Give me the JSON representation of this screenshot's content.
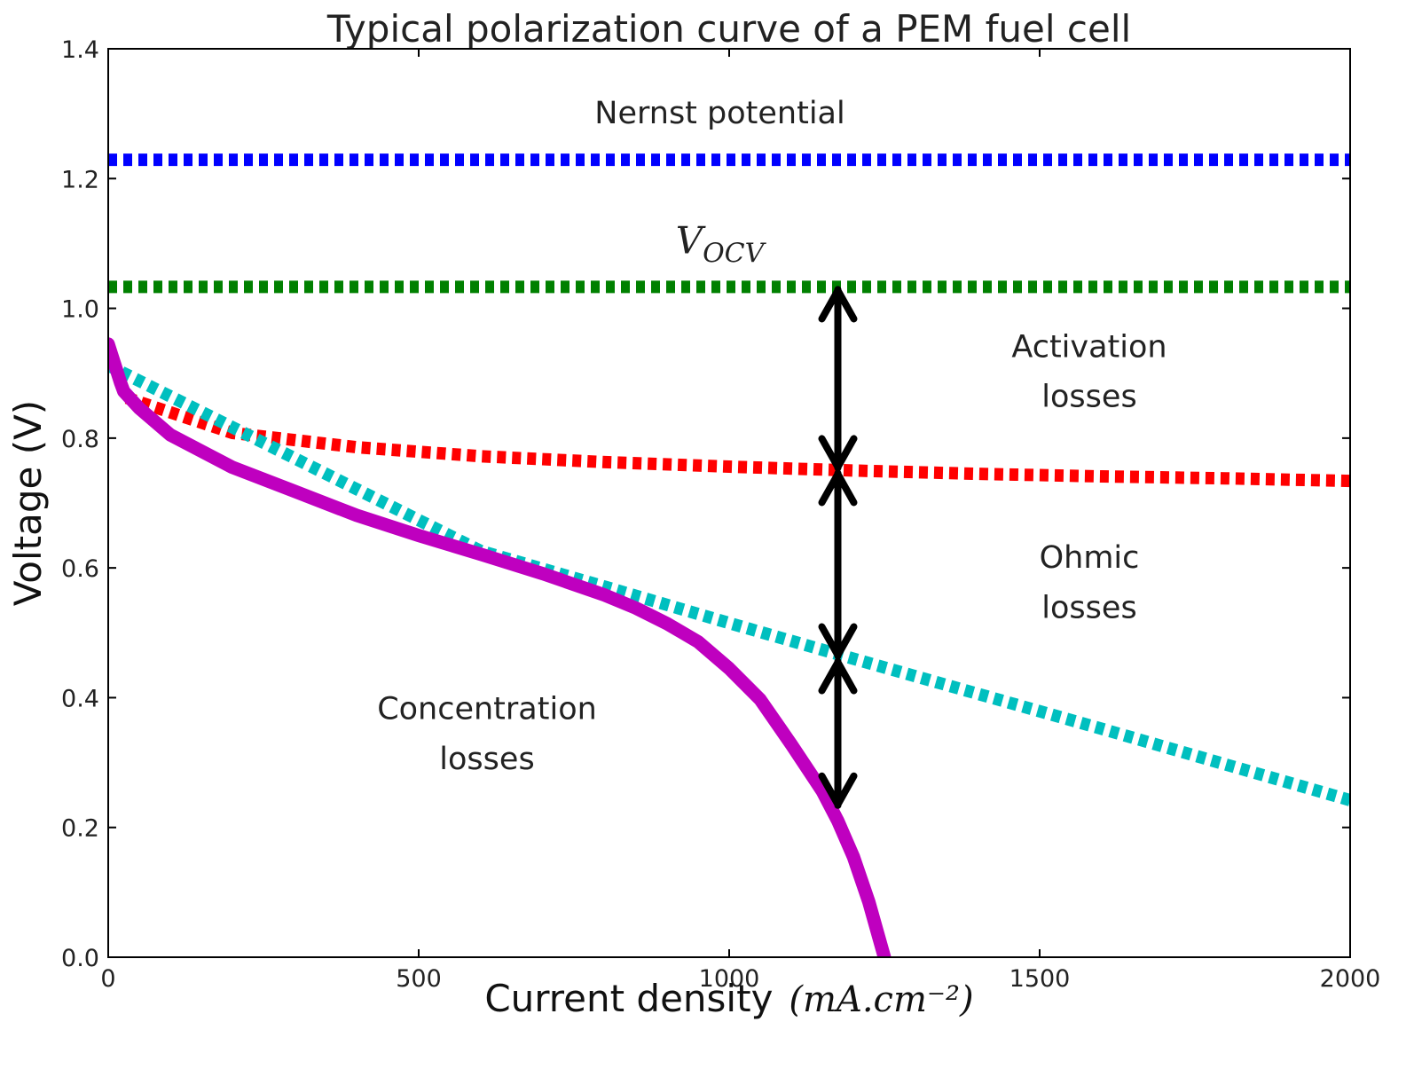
{
  "chart_data": {
    "type": "line",
    "title": "Typical polarization curve of a PEM fuel cell",
    "xlabel": "Current density",
    "xlabel_unit": "(mA.cm⁻²)",
    "ylabel": "Voltage (V)",
    "xlim": [
      0,
      2000
    ],
    "ylim": [
      0.0,
      1.4
    ],
    "xticks": [
      0,
      500,
      1000,
      1500,
      2000
    ],
    "xtick_labels": [
      "0",
      "500",
      "1000",
      "1500",
      "2000"
    ],
    "yticks": [
      0.0,
      0.2,
      0.4,
      0.6,
      0.8,
      1.0,
      1.2,
      1.4
    ],
    "ytick_labels": [
      "0.0",
      "0.2",
      "0.4",
      "0.6",
      "0.8",
      "1.0",
      "1.2",
      "1.4"
    ],
    "grid": false,
    "series": [
      {
        "color": "#0000ff",
        "style": "dotted",
        "x": [
          0,
          2000
        ],
        "y": [
          1.229,
          1.229
        ]
      },
      {
        "color": "#008000",
        "style": "dotted",
        "x": [
          0,
          2000
        ],
        "y": [
          1.033,
          1.033
        ]
      },
      {
        "color": "#ff0000",
        "style": "dotted",
        "x": [
          30,
          200,
          400,
          600,
          800,
          1000,
          1200,
          1400,
          1600,
          1800,
          2000
        ],
        "y": [
          0.862,
          0.808,
          0.786,
          0.772,
          0.763,
          0.756,
          0.75,
          0.745,
          0.741,
          0.738,
          0.734
        ]
      },
      {
        "color": "#00bfbf",
        "style": "dotted",
        "x": [
          0,
          600,
          800,
          1000,
          1200,
          1400,
          1600,
          1800,
          2000
        ],
        "y": [
          0.912,
          0.626,
          0.571,
          0.515,
          0.46,
          0.406,
          0.352,
          0.297,
          0.242
        ]
      },
      {
        "color": "#bf00bf",
        "style": "solid",
        "x": [
          0,
          5,
          15,
          20,
          25,
          50,
          100,
          200,
          300,
          400,
          500,
          600,
          700,
          800,
          850,
          900,
          950,
          1000,
          1050,
          1100,
          1150,
          1175,
          1200,
          1225,
          1250
        ],
        "y": [
          0.945,
          0.93,
          0.9,
          0.885,
          0.872,
          0.846,
          0.805,
          0.755,
          0.718,
          0.681,
          0.65,
          0.621,
          0.591,
          0.558,
          0.538,
          0.514,
          0.486,
          0.445,
          0.397,
          0.328,
          0.256,
          0.21,
          0.155,
          0.085,
          0.0
        ]
      }
    ],
    "arrows": [
      {
        "x": 1175,
        "y_from": 1.033,
        "y_to": 0.75
      },
      {
        "x": 1175,
        "y_from": 0.75,
        "y_to": 0.46
      },
      {
        "x": 1175,
        "y_from": 0.46,
        "y_to": 0.23
      }
    ],
    "annotations": [
      {
        "key": "nernst",
        "text": "Nernst potential",
        "x": 985,
        "y": 1.285
      },
      {
        "key": "vocv",
        "text": "V_OCV",
        "x": 985,
        "y": 1.085
      },
      {
        "key": "activation1",
        "text": "Activation",
        "x": 1580,
        "y": 0.925
      },
      {
        "key": "activation2",
        "text": "losses",
        "x": 1580,
        "y": 0.848
      },
      {
        "key": "ohmic1",
        "text": "Ohmic",
        "x": 1580,
        "y": 0.6
      },
      {
        "key": "ohmic2",
        "text": "losses",
        "x": 1580,
        "y": 0.523
      },
      {
        "key": "concentration1",
        "text": "Concentration",
        "x": 610,
        "y": 0.367
      },
      {
        "key": "concentration2",
        "text": "losses",
        "x": 610,
        "y": 0.29
      }
    ]
  }
}
